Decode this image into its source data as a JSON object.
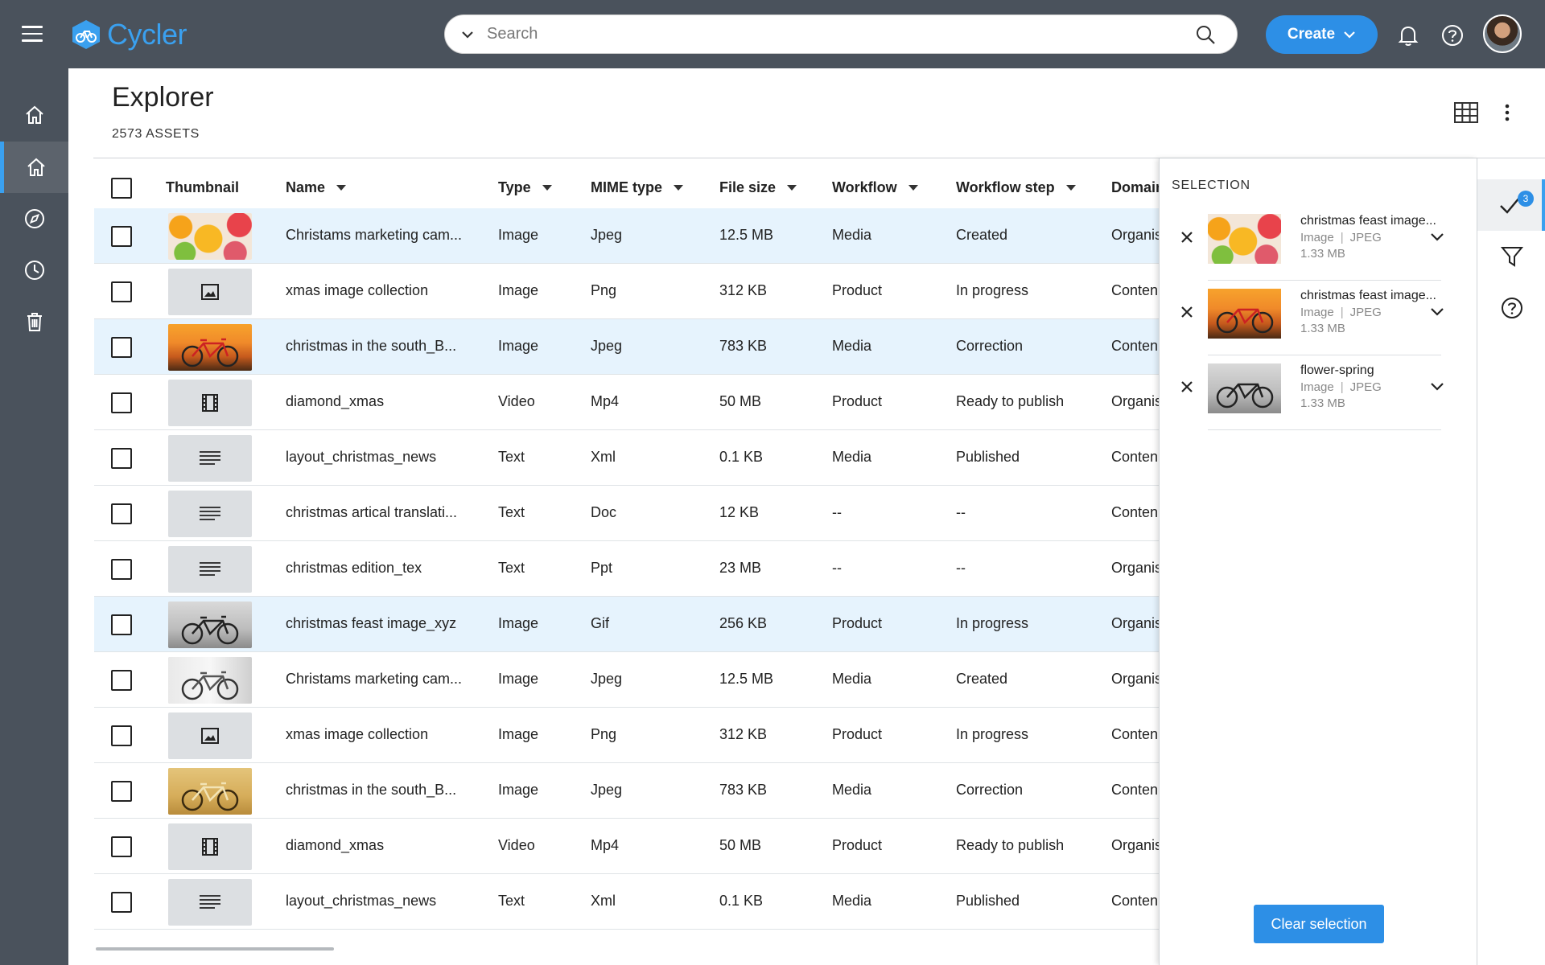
{
  "app": {
    "name": "Cycler"
  },
  "search": {
    "placeholder": "Search"
  },
  "header": {
    "create_label": "Create"
  },
  "page": {
    "title": "Explorer",
    "asset_count": "2573 ASSETS"
  },
  "table": {
    "columns": {
      "thumbnail": "Thumbnail",
      "name": "Name",
      "type": "Type",
      "mime": "MIME type",
      "size": "File size",
      "workflow": "Workflow",
      "step": "Workflow step",
      "domain": "Domain"
    },
    "rows": [
      {
        "name": "Christams marketing cam...",
        "type": "Image",
        "mime": "Jpeg",
        "size": "12.5 MB",
        "workflow": "Media",
        "step": "Created",
        "domain": "Organis"
      },
      {
        "name": "xmas image collection",
        "type": "Image",
        "mime": "Png",
        "size": "312 KB",
        "workflow": "Product",
        "step": "In progress",
        "domain": "Conten"
      },
      {
        "name": "christmas in the south_B...",
        "type": "Image",
        "mime": "Jpeg",
        "size": "783 KB",
        "workflow": "Media",
        "step": "Correction",
        "domain": "Conten"
      },
      {
        "name": "diamond_xmas",
        "type": "Video",
        "mime": "Mp4",
        "size": "50 MB",
        "workflow": "Product",
        "step": "Ready to publish",
        "domain": "Organis"
      },
      {
        "name": "layout_christmas_news",
        "type": "Text",
        "mime": "Xml",
        "size": "0.1 KB",
        "workflow": "Media",
        "step": "Published",
        "domain": "Conten"
      },
      {
        "name": "christmas artical translati...",
        "type": "Text",
        "mime": "Doc",
        "size": "12 KB",
        "workflow": "--",
        "step": "--",
        "domain": "Conten"
      },
      {
        "name": "christmas edition_tex",
        "type": "Text",
        "mime": "Ppt",
        "size": "23 MB",
        "workflow": "--",
        "step": "--",
        "domain": "Organis"
      },
      {
        "name": "christmas feast image_xyz",
        "type": "Image",
        "mime": "Gif",
        "size": "256 KB",
        "workflow": "Product",
        "step": "In progress",
        "domain": "Organis"
      },
      {
        "name": "Christams marketing cam...",
        "type": "Image",
        "mime": "Jpeg",
        "size": "12.5 MB",
        "workflow": "Media",
        "step": "Created",
        "domain": "Organis"
      },
      {
        "name": "xmas image collection",
        "type": "Image",
        "mime": "Png",
        "size": "312 KB",
        "workflow": "Product",
        "step": "In progress",
        "domain": "Conten"
      },
      {
        "name": "christmas in the south_B...",
        "type": "Image",
        "mime": "Jpeg",
        "size": "783 KB",
        "workflow": "Media",
        "step": "Correction",
        "domain": "Conten"
      },
      {
        "name": "diamond_xmas",
        "type": "Video",
        "mime": "Mp4",
        "size": "50 MB",
        "workflow": "Product",
        "step": "Ready to publish",
        "domain": "Organis"
      },
      {
        "name": "layout_christmas_news",
        "type": "Text",
        "mime": "Xml",
        "size": "0.1 KB",
        "workflow": "Media",
        "step": "Published",
        "domain": "Conten"
      }
    ]
  },
  "selection": {
    "title": "SELECTION",
    "count": "3",
    "items": [
      {
        "name": "christmas feast image...",
        "type": "Image",
        "format": "JPEG",
        "size": "1.33 MB"
      },
      {
        "name": "christmas feast image...",
        "type": "Image",
        "format": "JPEG",
        "size": "1.33 MB"
      },
      {
        "name": "flower-spring",
        "type": "Image",
        "format": "JPEG",
        "size": "1.33 MB"
      }
    ],
    "clear_label": "Clear selection"
  },
  "icons": {
    "nav": [
      "home-icon",
      "home-icon",
      "compass-icon",
      "clock-icon",
      "trash-icon"
    ],
    "rail": [
      "check-icon",
      "filter-icon",
      "help-icon"
    ]
  },
  "colors": {
    "accent": "#2d8fe6",
    "topbar": "#4a525c",
    "selected_row": "#e6f3fd"
  }
}
